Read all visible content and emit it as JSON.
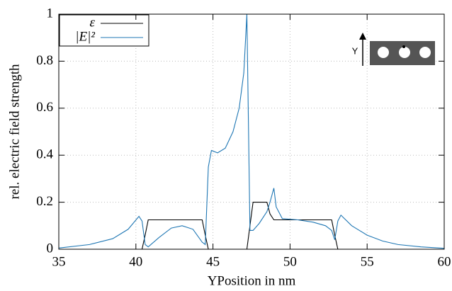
{
  "chart_data": {
    "type": "line",
    "xlabel": "YPosition in nm",
    "ylabel": "rel. electric field strength",
    "annotation": "Y",
    "x": [
      35,
      37,
      38.5,
      39.5,
      40.2,
      40.4,
      40.6,
      40.8,
      41.5,
      42.3,
      43,
      43.7,
      44.3,
      44.5,
      44.7,
      44.9,
      45.3,
      45.8,
      46.3,
      46.7,
      47.0,
      47.2,
      47.4,
      47.6,
      48.0,
      48.5,
      48.7,
      48.95,
      49.1,
      49.5,
      50.5,
      51.5,
      52.3,
      52.7,
      52.9,
      53.1,
      53.3,
      54,
      55,
      56,
      57,
      58.5,
      60
    ],
    "series": [
      {
        "name": "ε",
        "color": "#000000",
        "values": [
          0,
          0,
          0,
          0,
          0,
          0,
          0.06,
          0.125,
          0.125,
          0.125,
          0.125,
          0.125,
          0.125,
          0.06,
          0,
          0,
          0,
          0,
          0,
          0,
          0,
          0,
          0.1,
          0.2,
          0.2,
          0.2,
          0.15,
          0.125,
          0.125,
          0.125,
          0.125,
          0.125,
          0.125,
          0.125,
          0.06,
          0,
          0,
          0,
          0,
          0,
          0,
          0,
          0
        ]
      },
      {
        "name": "|E|²",
        "color": "#1f77b4",
        "values": [
          0.005,
          0.02,
          0.045,
          0.085,
          0.14,
          0.12,
          0.02,
          0.01,
          0.05,
          0.09,
          0.1,
          0.085,
          0.03,
          0.02,
          0.35,
          0.42,
          0.41,
          0.43,
          0.5,
          0.6,
          0.75,
          1.0,
          0.08,
          0.08,
          0.11,
          0.16,
          0.2,
          0.26,
          0.18,
          0.13,
          0.125,
          0.115,
          0.1,
          0.08,
          0.04,
          0.12,
          0.145,
          0.1,
          0.06,
          0.035,
          0.02,
          0.01,
          0.004
        ]
      }
    ],
    "xlim": [
      35,
      60
    ],
    "xticks": [
      35,
      40,
      45,
      50,
      55,
      60
    ],
    "ylim": [
      0,
      1
    ],
    "yticks": [
      0,
      0.2,
      0.4,
      0.6,
      0.8,
      1
    ],
    "grid": true
  }
}
